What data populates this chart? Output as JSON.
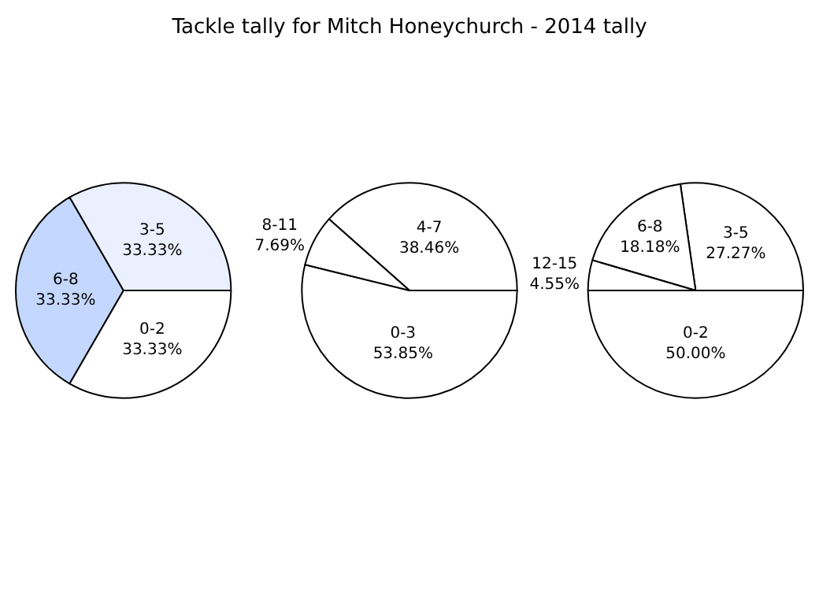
{
  "chart_data": [
    {
      "type": "pie",
      "title": "Tackle tally for Mitch Honeychurch - 2014 tally",
      "categories": [
        "0-2",
        "3-5",
        "6-8"
      ],
      "values": [
        33.33,
        33.33,
        33.33
      ],
      "value_labels": [
        "33.33%",
        "33.33%",
        "33.33%"
      ],
      "colors": [
        "#ffffff",
        "#eaf0ff",
        "#c4d8ff"
      ]
    },
    {
      "type": "pie",
      "categories": [
        "0-3",
        "4-7",
        "8-11"
      ],
      "values": [
        53.85,
        38.46,
        7.69
      ],
      "value_labels": [
        "53.85%",
        "38.46%",
        "7.69%"
      ],
      "colors": [
        "#ffffff",
        "#ffffff",
        "#ffffff"
      ]
    },
    {
      "type": "pie",
      "categories": [
        "0-2",
        "3-5",
        "6-8",
        "12-15"
      ],
      "values": [
        50.0,
        27.27,
        18.18,
        4.55
      ],
      "value_labels": [
        "50.00%",
        "27.27%",
        "18.18%",
        "4.55%"
      ],
      "colors": [
        "#ffffff",
        "#ffffff",
        "#ffffff",
        "#ffffff"
      ]
    }
  ]
}
